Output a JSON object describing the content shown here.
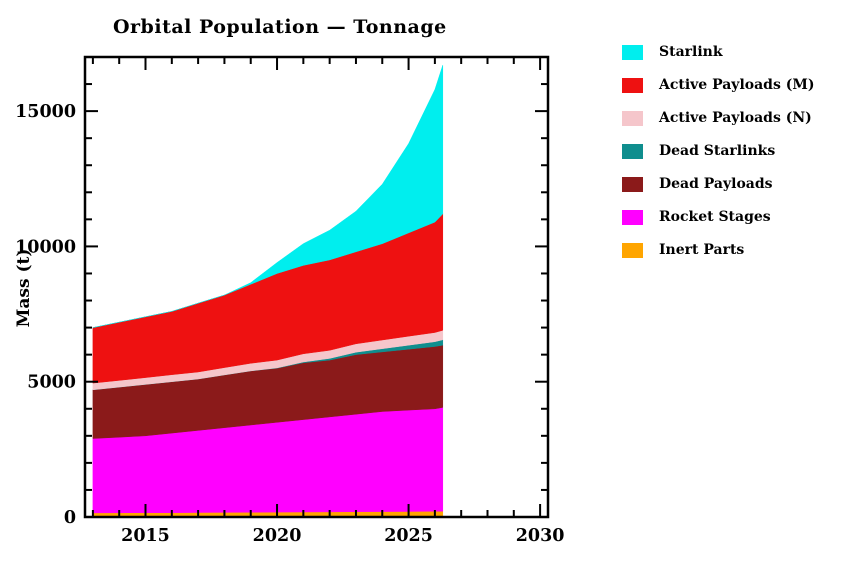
{
  "page": {
    "background": "#ffffff"
  },
  "chart_data": {
    "type": "area",
    "stacked": true,
    "title": "Orbital Population — Tonnage",
    "ylabel": "Mass (t)",
    "xlabel": "",
    "xlim": [
      2012.7,
      2030.3
    ],
    "ylim": [
      0,
      17000
    ],
    "xticks_major": [
      2015,
      2020,
      2025,
      2030
    ],
    "xtick_minor_step": 1,
    "yticks_major": [
      0,
      5000,
      10000,
      15000
    ],
    "ytick_minor_step": 1000,
    "grid": false,
    "legend_position": "right-outside",
    "x": [
      2013,
      2014,
      2015,
      2016,
      2017,
      2018,
      2019,
      2020,
      2021,
      2022,
      2023,
      2024,
      2025,
      2026,
      2026.3
    ],
    "series": [
      {
        "name": "Inert Parts",
        "color": "#ffa500",
        "values": [
          150,
          155,
          160,
          160,
          165,
          170,
          175,
          180,
          185,
          190,
          195,
          200,
          205,
          210,
          210
        ]
      },
      {
        "name": "Rocket Stages",
        "color": "#ff00ff",
        "values": [
          2750,
          2795,
          2840,
          2940,
          3035,
          3130,
          3225,
          3320,
          3415,
          3510,
          3605,
          3700,
          3745,
          3790,
          3840
        ]
      },
      {
        "name": "Dead Payloads",
        "color": "#8b1a1a",
        "values": [
          1800,
          1850,
          1900,
          1900,
          1900,
          1950,
          2000,
          2000,
          2100,
          2100,
          2200,
          2200,
          2250,
          2300,
          2300
        ]
      },
      {
        "name": "Dead Starlinks",
        "color": "#0f8e8e",
        "values": [
          0,
          0,
          0,
          0,
          0,
          0,
          0,
          10,
          30,
          60,
          90,
          120,
          150,
          180,
          200
        ]
      },
      {
        "name": "Active Payloads (N)",
        "color": "#f5c6cb",
        "values": [
          250,
          250,
          250,
          260,
          260,
          270,
          280,
          290,
          300,
          300,
          310,
          320,
          330,
          340,
          350
        ]
      },
      {
        "name": "Active Payloads (M)",
        "color": "#ee1111",
        "values": [
          2050,
          2150,
          2250,
          2340,
          2540,
          2680,
          2920,
          3200,
          3270,
          3340,
          3400,
          3560,
          3820,
          4080,
          4300
        ]
      },
      {
        "name": "Starlink",
        "color": "#00eeee",
        "values": [
          0,
          0,
          0,
          0,
          0,
          0,
          60,
          400,
          800,
          1100,
          1500,
          2200,
          3300,
          4900,
          5500
        ]
      }
    ],
    "legend_order_note": "legend lists series from top of stack to bottom"
  }
}
